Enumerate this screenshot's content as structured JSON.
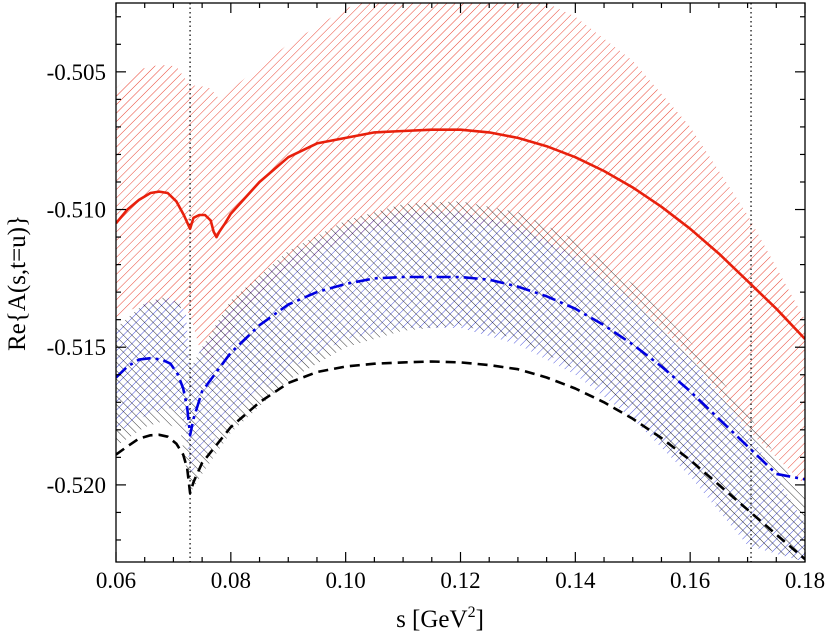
{
  "chart_data": {
    "type": "line",
    "title": "",
    "xlabel": "s [GeV",
    "xlabel_sup": "2",
    "xlabel_end": "]",
    "ylabel": "Re{A(s,t=u)}",
    "xlim": [
      0.06,
      0.18
    ],
    "ylim": [
      -0.5228,
      -0.5025
    ],
    "x_ticks": [
      0.06,
      0.08,
      0.1,
      0.12,
      0.14,
      0.16,
      0.18
    ],
    "x_tick_labels": [
      "0.06",
      "0.08",
      "0.10",
      "0.12",
      "0.14",
      "0.16",
      "0.18"
    ],
    "y_ticks": [
      -0.505,
      -0.51,
      -0.515,
      -0.52
    ],
    "y_tick_labels": [
      "-0.505",
      "-0.510",
      "-0.515",
      "-0.520"
    ],
    "vertical_lines": [
      0.0729,
      0.1706
    ],
    "bands": [
      {
        "name": "red-band",
        "color": "#e8301c",
        "hatch": "diag-down",
        "x": [
          0.06,
          0.063,
          0.066,
          0.068,
          0.0705,
          0.0729,
          0.0745,
          0.0765,
          0.078,
          0.085,
          0.09,
          0.1,
          0.11,
          0.115,
          0.12,
          0.13,
          0.14,
          0.15,
          0.16,
          0.17,
          0.18
        ],
        "upper": [
          -0.5056,
          -0.505,
          -0.5048,
          -0.50475,
          -0.5048,
          -0.5055,
          -0.5055,
          -0.5056,
          -0.506,
          -0.5048,
          -0.504,
          -0.5027,
          -0.50195,
          -0.50175,
          -0.5017,
          -0.502,
          -0.503,
          -0.5046,
          -0.507,
          -0.5102,
          -0.514
        ],
        "lower": [
          -0.5139,
          -0.5136,
          -0.5135,
          -0.51335,
          -0.5134,
          -0.5138,
          -0.515,
          -0.5155,
          -0.5149,
          -0.5131,
          -0.5122,
          -0.51105,
          -0.5104,
          -0.5103,
          -0.5104,
          -0.5108,
          -0.5118,
          -0.5133,
          -0.5153,
          -0.518,
          -0.52
        ]
      },
      {
        "name": "blue-band",
        "color": "#3b45d8",
        "hatch": "diag-down",
        "x": [
          0.06,
          0.065,
          0.069,
          0.0712,
          0.0722,
          0.0729,
          0.075,
          0.08,
          0.09,
          0.1,
          0.11,
          0.12,
          0.13,
          0.14,
          0.15,
          0.16,
          0.17,
          0.18
        ],
        "upper": [
          -0.5143,
          -0.5134,
          -0.5132,
          -0.5134,
          -0.5138,
          -0.5158,
          -0.515,
          -0.5135,
          -0.5117,
          -0.5106,
          -0.5101,
          -0.5101,
          -0.5106,
          -0.5117,
          -0.5133,
          -0.5154,
          -0.518,
          -0.5214
        ],
        "lower": [
          -0.5181,
          -0.5175,
          -0.5172,
          -0.5174,
          -0.518,
          -0.5196,
          -0.519,
          -0.5175,
          -0.5158,
          -0.5147,
          -0.5143,
          -0.5143,
          -0.5149,
          -0.516,
          -0.5176,
          -0.5197,
          -0.5222,
          -0.5228
        ]
      },
      {
        "name": "black-band",
        "color": "#000000",
        "hatch": "diag-up",
        "x": [
          0.06,
          0.065,
          0.068,
          0.0712,
          0.0729,
          0.075,
          0.08,
          0.09,
          0.1,
          0.11,
          0.12,
          0.13,
          0.14,
          0.15,
          0.16,
          0.17,
          0.18
        ],
        "upper": [
          -0.5143,
          -0.5134,
          -0.5132,
          -0.5134,
          -0.5158,
          -0.515,
          -0.5133,
          -0.5115,
          -0.5104,
          -0.5098,
          -0.5097,
          -0.5101,
          -0.5111,
          -0.5127,
          -0.5148,
          -0.5174,
          -0.5205
        ],
        "lower": [
          -0.5186,
          -0.5179,
          -0.5177,
          -0.518,
          -0.5203,
          -0.5196,
          -0.5181,
          -0.5162,
          -0.515,
          -0.5144,
          -0.5142,
          -0.5147,
          -0.5158,
          -0.5173,
          -0.5195,
          -0.5221,
          -0.5228
        ]
      }
    ],
    "series": [
      {
        "name": "red-solid",
        "color": "#e8200c",
        "style": "solid",
        "x": [
          0.06,
          0.062,
          0.064,
          0.066,
          0.0675,
          0.069,
          0.0705,
          0.0718,
          0.0729,
          0.0735,
          0.0745,
          0.0755,
          0.0765,
          0.077,
          0.0775,
          0.078,
          0.079,
          0.08,
          0.085,
          0.09,
          0.095,
          0.1,
          0.105,
          0.11,
          0.115,
          0.12,
          0.125,
          0.13,
          0.135,
          0.14,
          0.145,
          0.15,
          0.155,
          0.16,
          0.165,
          0.17,
          0.175,
          0.18
        ],
        "y": [
          -0.5105,
          -0.51,
          -0.50965,
          -0.5094,
          -0.50935,
          -0.5094,
          -0.5097,
          -0.5102,
          -0.5107,
          -0.5103,
          -0.5102,
          -0.5102,
          -0.5104,
          -0.5108,
          -0.511,
          -0.5108,
          -0.5105,
          -0.51015,
          -0.509,
          -0.5081,
          -0.5076,
          -0.5074,
          -0.5072,
          -0.50715,
          -0.5071,
          -0.5071,
          -0.5072,
          -0.5074,
          -0.5077,
          -0.5081,
          -0.5086,
          -0.5092,
          -0.5099,
          -0.5107,
          -0.5116,
          -0.5126,
          -0.5136,
          -0.5147
        ]
      },
      {
        "name": "blue-dashdot",
        "color": "#0000e0",
        "style": "dashdot",
        "x": [
          0.06,
          0.062,
          0.064,
          0.066,
          0.068,
          0.0695,
          0.0708,
          0.0717,
          0.0724,
          0.0729,
          0.0735,
          0.075,
          0.08,
          0.085,
          0.09,
          0.095,
          0.1,
          0.105,
          0.11,
          0.115,
          0.12,
          0.125,
          0.13,
          0.135,
          0.14,
          0.145,
          0.15,
          0.155,
          0.16,
          0.165,
          0.17,
          0.175,
          0.18
        ],
        "y": [
          -0.5161,
          -0.5157,
          -0.51545,
          -0.5154,
          -0.51545,
          -0.5156,
          -0.516,
          -0.5165,
          -0.5172,
          -0.5182,
          -0.5176,
          -0.5166,
          -0.5152,
          -0.5142,
          -0.51345,
          -0.513,
          -0.5127,
          -0.5125,
          -0.51245,
          -0.51245,
          -0.51245,
          -0.51255,
          -0.5128,
          -0.51315,
          -0.5136,
          -0.5142,
          -0.5149,
          -0.5157,
          -0.5166,
          -0.5176,
          -0.5186,
          -0.5196,
          -0.5198
        ]
      },
      {
        "name": "black-dashed",
        "color": "#000000",
        "style": "dashed",
        "x": [
          0.06,
          0.062,
          0.064,
          0.066,
          0.0675,
          0.069,
          0.0705,
          0.0717,
          0.0724,
          0.0729,
          0.0735,
          0.075,
          0.08,
          0.085,
          0.09,
          0.095,
          0.1,
          0.105,
          0.11,
          0.115,
          0.12,
          0.125,
          0.13,
          0.135,
          0.14,
          0.145,
          0.15,
          0.155,
          0.16,
          0.165,
          0.17,
          0.175,
          0.18
        ],
        "y": [
          -0.5189,
          -0.5186,
          -0.51832,
          -0.5182,
          -0.51818,
          -0.51825,
          -0.5185,
          -0.5189,
          -0.5194,
          -0.5203,
          -0.5199,
          -0.5192,
          -0.5179,
          -0.517,
          -0.5163,
          -0.5159,
          -0.5157,
          -0.5156,
          -0.51555,
          -0.51552,
          -0.51555,
          -0.51565,
          -0.5158,
          -0.5161,
          -0.5165,
          -0.517,
          -0.5176,
          -0.5183,
          -0.5191,
          -0.52,
          -0.5209,
          -0.5218,
          -0.5227
        ]
      }
    ]
  }
}
